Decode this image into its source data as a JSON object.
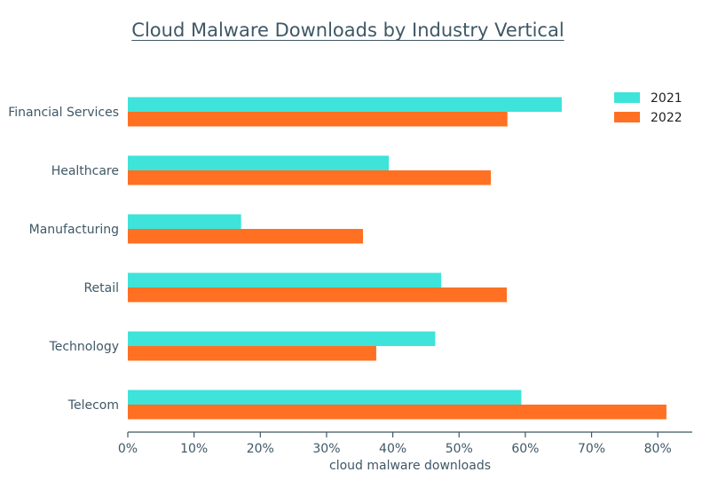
{
  "chart_data": {
    "type": "bar",
    "orientation": "horizontal",
    "title": "Cloud Malware Downloads by Industry Vertical",
    "xlabel": "cloud malware downloads",
    "ylabel": "",
    "xlim": [
      0,
      85
    ],
    "xticks": [
      "0%",
      "10%",
      "20%",
      "30%",
      "40%",
      "50%",
      "60%",
      "70%",
      "80%"
    ],
    "categories": [
      "Financial Services",
      "Healthcare",
      "Manufacturing",
      "Retail",
      "Technology",
      "Telecom"
    ],
    "series": [
      {
        "name": "2021",
        "color": "#3ee3da",
        "values": [
          65.5,
          39.4,
          17.1,
          47.3,
          46.4,
          59.4
        ]
      },
      {
        "name": "2022",
        "color": "#ff7022",
        "values": [
          57.3,
          54.8,
          35.5,
          57.2,
          37.5,
          81.3
        ]
      }
    ],
    "legend_position": "top-right",
    "grid": false
  }
}
